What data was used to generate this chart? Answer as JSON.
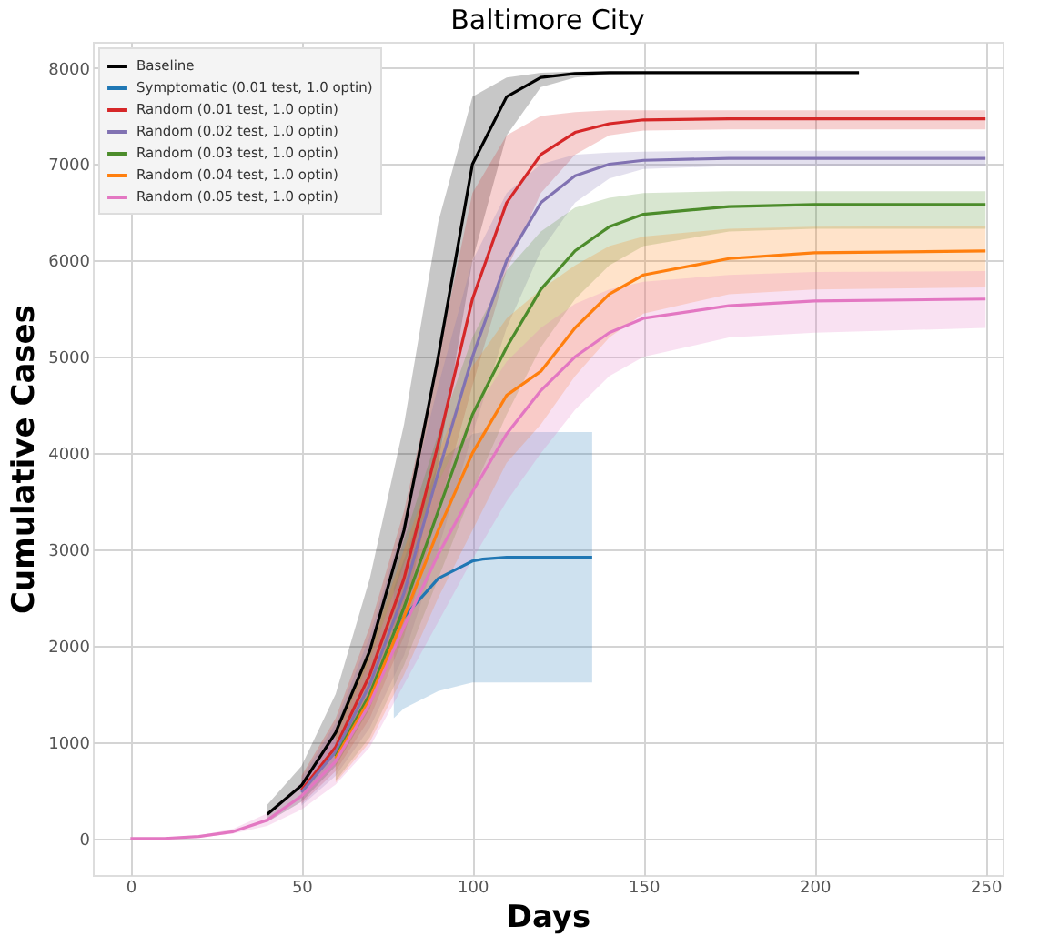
{
  "chart_data": {
    "type": "line",
    "title": "Baltimore City",
    "xlabel": "Days",
    "ylabel": "Cumulative Cases",
    "xlim": [
      -11,
      255
    ],
    "xticks": [
      0,
      50,
      100,
      150,
      200,
      250
    ],
    "ylim": [
      -380,
      8270
    ],
    "yticks": [
      0,
      1000,
      2000,
      3000,
      4000,
      5000,
      6000,
      7000,
      8000
    ],
    "grid": true,
    "legend": "top left",
    "line_style": "solid",
    "marker": "none",
    "series": [
      {
        "name": "Baseline",
        "color": "#000000",
        "x": [
          40,
          50,
          60,
          70,
          80,
          90,
          100,
          110,
          120,
          130,
          140,
          150,
          175,
          200,
          213
        ],
        "values": [
          250,
          550,
          1100,
          1950,
          3200,
          5000,
          7000,
          7700,
          7900,
          7940,
          7950,
          7950,
          7950,
          7950,
          7950
        ],
        "lower": [
          170,
          380,
          750,
          1350,
          2300,
          3900,
          6000,
          7300,
          7800,
          7900,
          7930,
          7940,
          7950,
          7950,
          7950
        ],
        "upper": [
          350,
          750,
          1500,
          2700,
          4300,
          6400,
          7700,
          7900,
          7950,
          7960,
          7960,
          7960,
          7960,
          7960,
          7960
        ]
      },
      {
        "name": "Symptomatic (0.01 test, 1.0 optin)",
        "color": "#1f77b4",
        "x": [
          77,
          80,
          90,
          100,
          103,
          110,
          120,
          135
        ],
        "values": [
          2150,
          2300,
          2700,
          2880,
          2900,
          2920,
          2920,
          2920
        ],
        "lower": [
          1250,
          1350,
          1530,
          1620,
          1620,
          1620,
          1620,
          1620
        ],
        "upper": [
          2600,
          2900,
          3900,
          4200,
          4220,
          4220,
          4220,
          4220
        ]
      },
      {
        "name": "Random (0.01 test, 1.0 optin)",
        "color": "#d62728",
        "x": [
          50,
          60,
          70,
          80,
          90,
          100,
          110,
          120,
          130,
          140,
          150,
          175,
          200,
          250
        ],
        "values": [
          500,
          950,
          1700,
          2700,
          4100,
          5600,
          6600,
          7100,
          7330,
          7420,
          7460,
          7470,
          7470,
          7470
        ],
        "lower": [
          360,
          700,
          1250,
          2100,
          3400,
          4700,
          5900,
          6700,
          7100,
          7300,
          7350,
          7360,
          7360,
          7360
        ],
        "upper": [
          650,
          1250,
          2200,
          3400,
          5000,
          6700,
          7300,
          7500,
          7540,
          7560,
          7560,
          7560,
          7560,
          7560
        ]
      },
      {
        "name": "Random (0.02 test, 1.0 optin)",
        "color": "#8172b2",
        "x": [
          50,
          60,
          70,
          80,
          90,
          100,
          110,
          120,
          130,
          140,
          150,
          175,
          200,
          250
        ],
        "values": [
          480,
          900,
          1600,
          2550,
          3800,
          5000,
          6000,
          6600,
          6880,
          7000,
          7040,
          7060,
          7060,
          7060
        ],
        "lower": [
          340,
          650,
          1150,
          1900,
          3000,
          4200,
          5300,
          6100,
          6600,
          6850,
          6950,
          6980,
          6980,
          6980
        ],
        "upper": [
          620,
          1200,
          2100,
          3300,
          4700,
          6000,
          6700,
          7000,
          7100,
          7120,
          7130,
          7140,
          7140,
          7140
        ]
      },
      {
        "name": "Random (0.03 test, 1.0 optin)",
        "color": "#4c8c2b",
        "x": [
          60,
          70,
          80,
          90,
          100,
          110,
          120,
          130,
          140,
          150,
          175,
          200,
          250
        ],
        "values": [
          850,
          1500,
          2400,
          3400,
          4400,
          5100,
          5700,
          6100,
          6350,
          6480,
          6560,
          6580,
          6580
        ],
        "lower": [
          600,
          1050,
          1800,
          2700,
          3600,
          4400,
          5100,
          5600,
          5950,
          6150,
          6300,
          6330,
          6330
        ],
        "upper": [
          1150,
          2000,
          3100,
          4200,
          5200,
          5900,
          6300,
          6550,
          6650,
          6700,
          6720,
          6720,
          6720
        ]
      },
      {
        "name": "Random (0.04 test, 1.0 optin)",
        "color": "#ff7f0e",
        "x": [
          60,
          70,
          80,
          90,
          100,
          110,
          120,
          130,
          140,
          150,
          175,
          200,
          250
        ],
        "values": [
          830,
          1450,
          2300,
          3200,
          4000,
          4600,
          4850,
          5300,
          5650,
          5850,
          6020,
          6080,
          6100
        ],
        "lower": [
          580,
          1000,
          1700,
          2500,
          3200,
          3900,
          4300,
          4800,
          5200,
          5450,
          5650,
          5700,
          5720
        ],
        "upper": [
          1100,
          1950,
          3000,
          4000,
          4900,
          5400,
          5700,
          5950,
          6150,
          6250,
          6330,
          6350,
          6360
        ]
      },
      {
        "name": "Random (0.05 test, 1.0 optin)",
        "color": "#e377c2",
        "x": [
          0,
          10,
          20,
          30,
          40,
          50,
          60,
          70,
          80,
          90,
          100,
          110,
          120,
          130,
          140,
          150,
          175,
          200,
          250
        ],
        "values": [
          0,
          0,
          20,
          70,
          190,
          440,
          800,
          1400,
          2200,
          2950,
          3600,
          4200,
          4650,
          5000,
          5250,
          5400,
          5530,
          5580,
          5600
        ],
        "lower": [
          0,
          0,
          10,
          50,
          130,
          300,
          560,
          950,
          1600,
          2250,
          2900,
          3500,
          4000,
          4450,
          4800,
          5000,
          5200,
          5250,
          5300
        ],
        "upper": [
          0,
          0,
          30,
          100,
          260,
          580,
          1050,
          1850,
          2850,
          3700,
          4400,
          4950,
          5300,
          5550,
          5700,
          5780,
          5850,
          5880,
          5890
        ]
      }
    ]
  }
}
